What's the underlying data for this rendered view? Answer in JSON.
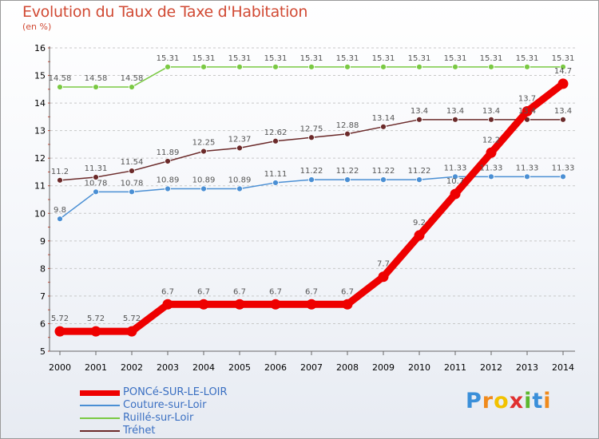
{
  "header": {
    "title": "Evolution du Taux de Taxe d'Habitation",
    "subtitle": "(en %)"
  },
  "chart_data": {
    "type": "line",
    "title": "Evolution du Taux de Taxe d'Habitation",
    "subtitle": "(en %)",
    "xlabel": "",
    "ylabel": "",
    "x": [
      "2000",
      "2001",
      "2002",
      "2003",
      "2004",
      "2005",
      "2006",
      "2007",
      "2008",
      "2009",
      "2010",
      "2011",
      "2012",
      "2013",
      "2014"
    ],
    "ylim": [
      5,
      16
    ],
    "yticks": [
      "5",
      "6",
      "7",
      "8",
      "9",
      "10",
      "11",
      "12",
      "13",
      "14",
      "15",
      "16"
    ],
    "grid": "dashed horizontal",
    "legend_position": "bottom-left",
    "series": [
      {
        "name": "PONCé-SUR-LE-LOIR",
        "color": "#ee0000",
        "emphasis": true,
        "values": [
          5.72,
          5.72,
          5.72,
          6.7,
          6.7,
          6.7,
          6.7,
          6.7,
          6.7,
          7.7,
          9.2,
          10.7,
          12.2,
          13.7,
          14.7
        ],
        "labels": [
          "5.72",
          "5.72",
          "5.72",
          "6.7",
          "6.7",
          "6.7",
          "6.7",
          "6.7",
          "6.7",
          "7.7",
          "9.2",
          "10.7",
          "12.2",
          "13.7",
          "14.7"
        ]
      },
      {
        "name": "Couture-sur-Loir",
        "color": "#4a8fd4",
        "emphasis": false,
        "values": [
          9.8,
          10.78,
          10.78,
          10.89,
          10.89,
          10.89,
          11.11,
          11.22,
          11.22,
          11.22,
          11.22,
          11.33,
          11.33,
          11.33,
          11.33
        ],
        "labels": [
          "9.8",
          "10.78",
          "10.78",
          "10.89",
          "10.89",
          "10.89",
          "11.11",
          "11.22",
          "11.22",
          "11.22",
          "11.22",
          "11.33",
          "11.33",
          "11.33",
          "11.33"
        ]
      },
      {
        "name": "Ruillé-sur-Loir",
        "color": "#7ac943",
        "emphasis": false,
        "values": [
          14.58,
          14.58,
          14.58,
          15.31,
          15.31,
          15.31,
          15.31,
          15.31,
          15.31,
          15.31,
          15.31,
          15.31,
          15.31,
          15.31,
          15.31
        ],
        "labels": [
          "14.58",
          "14.58",
          "14.58",
          "15.31",
          "15.31",
          "15.31",
          "15.31",
          "15.31",
          "15.31",
          "15.31",
          "15.31",
          "15.31",
          "15.31",
          "15.31",
          "15.31"
        ]
      },
      {
        "name": "Tréhet",
        "color": "#6b2a2a",
        "emphasis": false,
        "values": [
          11.2,
          11.31,
          11.54,
          11.89,
          12.25,
          12.37,
          12.62,
          12.75,
          12.88,
          13.14,
          13.4,
          13.4,
          13.4,
          13.4,
          13.4
        ],
        "labels": [
          "11.2",
          "11.31",
          "11.54",
          "11.89",
          "12.25",
          "12.37",
          "12.62",
          "12.75",
          "12.88",
          "13.14",
          "13.4",
          "13.4",
          "13.4",
          "13.4",
          "13.4"
        ]
      }
    ]
  },
  "legend": {
    "items": [
      {
        "label": "PONCé-SUR-LE-LOIR",
        "color": "#ee0000"
      },
      {
        "label": "Couture-sur-Loir",
        "color": "#4a8fd4"
      },
      {
        "label": "Ruillé-sur-Loir",
        "color": "#7ac943"
      },
      {
        "label": "Tréhet",
        "color": "#6b2a2a"
      }
    ]
  },
  "logo": {
    "letters": [
      "P",
      "r",
      "o",
      "x",
      "i",
      "t",
      "i"
    ],
    "colors": [
      "#3a8fd9",
      "#f08a1c",
      "#f2c200",
      "#e03030",
      "#5cb82e",
      "#3a8fd9",
      "#f08a1c"
    ]
  }
}
